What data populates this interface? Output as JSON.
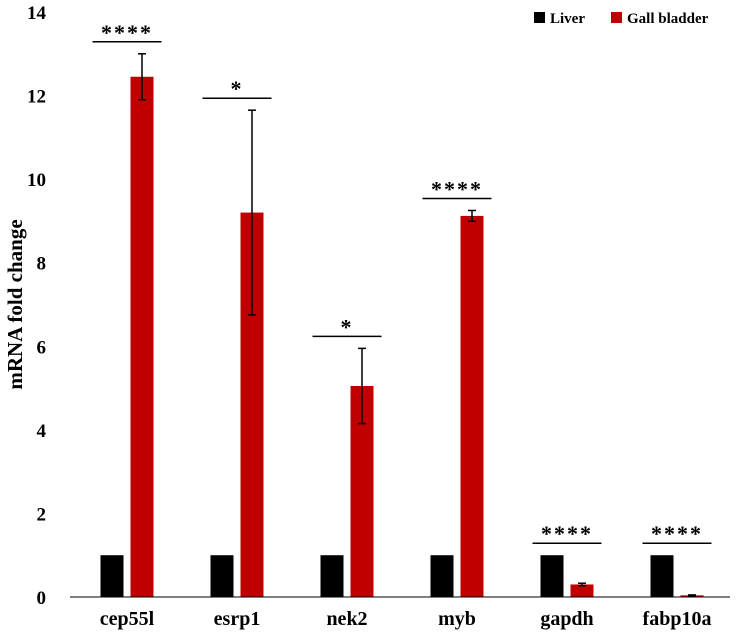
{
  "chart_data": {
    "type": "bar",
    "title": "",
    "xlabel": "",
    "ylabel": "mRNA fold change",
    "ylim": [
      0,
      14
    ],
    "yticks": [
      0,
      2,
      4,
      6,
      8,
      10,
      12,
      14
    ],
    "grid": false,
    "legend_position": "top-right",
    "categories": [
      "cep55l",
      "esrp1",
      "nek2",
      "myb",
      "gapdh",
      "fabp10a"
    ],
    "series": [
      {
        "name": "Liver",
        "color": "#000000",
        "values": [
          1,
          1,
          1,
          1,
          1,
          1
        ],
        "errors": [
          0,
          0,
          0,
          0,
          0,
          0
        ]
      },
      {
        "name": "Gall bladder",
        "color": "#c00000",
        "values": [
          12.45,
          9.2,
          5.05,
          9.12,
          0.3,
          0.04
        ],
        "errors": [
          0.55,
          2.45,
          0.9,
          0.13,
          0.03,
          0.01
        ]
      }
    ],
    "significance": [
      "****",
      "*",
      "*",
      "****",
      "****",
      "****"
    ]
  }
}
